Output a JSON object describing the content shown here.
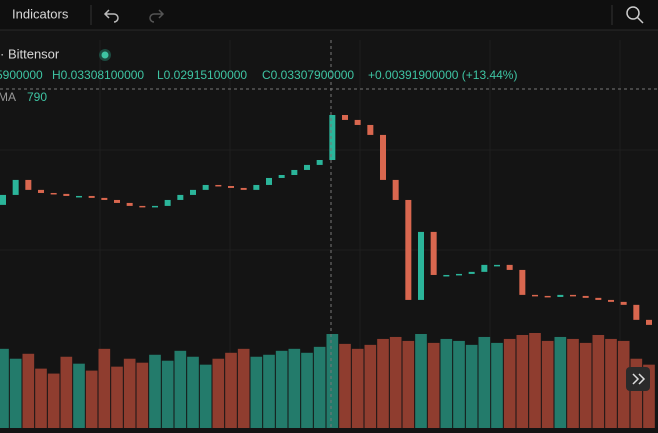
{
  "toolbar": {
    "indicators": "Indicators"
  },
  "legend": {
    "symbol": "· Bittensor",
    "open": "5900000",
    "high": "H0.03308100000",
    "low": "L0.02915100000",
    "close": "C0.03307900000",
    "change": "+0.00391900000 (+13.44%)",
    "ma_label": "MA",
    "ma_value": "790"
  },
  "chart_data": {
    "type": "candlestick",
    "up_color": "#2bb59a",
    "down_color": "#d9674f",
    "vol_up_color": "#237b6b",
    "vol_down_color": "#8f3d2f",
    "ylim": [
      0.0134,
      0.0396
    ],
    "open": [
      0.0252,
      0.02607,
      0.02738,
      0.02651,
      0.02624,
      0.02616,
      0.02598,
      0.02598,
      0.02581,
      0.02563,
      0.02537,
      0.02511,
      0.02502,
      0.02511,
      0.02563,
      0.02607,
      0.02651,
      0.02694,
      0.02685,
      0.02668,
      0.02651,
      0.02694,
      0.02755,
      0.02781,
      0.02825,
      0.02869,
      0.02912,
      0.03305,
      0.03262,
      0.03218,
      0.03131,
      0.02738,
      0.02563,
      0.0169,
      0.02284,
      0.01908,
      0.01908,
      0.01917,
      0.01935,
      0.01996,
      0.01996,
      0.01952,
      0.01734,
      0.01725,
      0.01716,
      0.01734,
      0.01725,
      0.01708,
      0.0169,
      0.01673,
      0.01647,
      0.01516
    ],
    "close": [
      0.02607,
      0.02738,
      0.02651,
      0.02624,
      0.02616,
      0.02598,
      0.02598,
      0.02581,
      0.02563,
      0.02537,
      0.02511,
      0.02502,
      0.02511,
      0.02563,
      0.02607,
      0.02651,
      0.02694,
      0.02685,
      0.02668,
      0.02651,
      0.02694,
      0.02755,
      0.02781,
      0.02825,
      0.02869,
      0.02912,
      0.03305,
      0.03262,
      0.03218,
      0.03131,
      0.02738,
      0.02563,
      0.0169,
      0.02284,
      0.01908,
      0.01908,
      0.01917,
      0.01935,
      0.01996,
      0.01996,
      0.01952,
      0.01734,
      0.01725,
      0.01716,
      0.01734,
      0.01725,
      0.01708,
      0.0169,
      0.01673,
      0.01647,
      0.01516,
      0.01472
    ],
    "volume": [
      80,
      70,
      75,
      60,
      55,
      72,
      65,
      58,
      80,
      62,
      70,
      66,
      74,
      68,
      78,
      72,
      64,
      70,
      76,
      80,
      72,
      74,
      78,
      80,
      76,
      82,
      95,
      85,
      80,
      84,
      90,
      92,
      88,
      95,
      86,
      90,
      88,
      84,
      92,
      86,
      90,
      94,
      96,
      88,
      92,
      90,
      86,
      94,
      90,
      88,
      70,
      64
    ]
  }
}
